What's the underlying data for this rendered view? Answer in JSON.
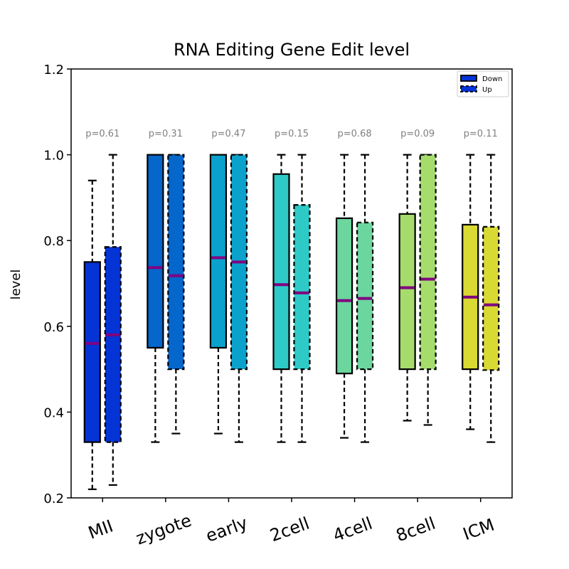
{
  "chart_data": {
    "type": "box",
    "title": "RNA Editing Gene Edit level",
    "xlabel": "",
    "ylabel": "level",
    "ylim": [
      0.2,
      1.2
    ],
    "yticks": [
      0.2,
      0.4,
      0.6,
      0.8,
      1.0,
      1.2
    ],
    "ytick_labels": [
      "0.2",
      "0.4",
      "0.6",
      "0.8",
      "1.0",
      "1.2"
    ],
    "grid": false,
    "legend_position": "top-right",
    "median_color": "#800080",
    "categories": [
      "MII",
      "zygote",
      "early",
      "2cell",
      "4cell",
      "8cell",
      "ICM"
    ],
    "category_colors": [
      "#0433d6",
      "#0566cc",
      "#0aa2cc",
      "#2ecac8",
      "#6bd69e",
      "#a6dc6c",
      "#d9d933"
    ],
    "p_values": [
      "p=0.61",
      "p=0.31",
      "p=0.47",
      "p=0.15",
      "p=0.68",
      "p=0.09",
      "p=0.11"
    ],
    "series": [
      {
        "name": "Down",
        "linestyle": "solid",
        "boxes": [
          {
            "whisker_low": 0.22,
            "q1": 0.33,
            "median": 0.56,
            "q3": 0.75,
            "whisker_high": 0.94
          },
          {
            "whisker_low": 0.33,
            "q1": 0.55,
            "median": 0.737,
            "q3": 1.0,
            "whisker_high": 1.0
          },
          {
            "whisker_low": 0.35,
            "q1": 0.55,
            "median": 0.76,
            "q3": 1.0,
            "whisker_high": 1.0
          },
          {
            "whisker_low": 0.33,
            "q1": 0.5,
            "median": 0.697,
            "q3": 0.955,
            "whisker_high": 1.0
          },
          {
            "whisker_low": 0.34,
            "q1": 0.49,
            "median": 0.66,
            "q3": 0.852,
            "whisker_high": 1.0
          },
          {
            "whisker_low": 0.38,
            "q1": 0.5,
            "median": 0.69,
            "q3": 0.862,
            "whisker_high": 1.0
          },
          {
            "whisker_low": 0.36,
            "q1": 0.5,
            "median": 0.668,
            "q3": 0.837,
            "whisker_high": 1.0
          }
        ]
      },
      {
        "name": "Up",
        "linestyle": "dashed",
        "boxes": [
          {
            "whisker_low": 0.23,
            "q1": 0.33,
            "median": 0.58,
            "q3": 0.785,
            "whisker_high": 1.0
          },
          {
            "whisker_low": 0.35,
            "q1": 0.5,
            "median": 0.718,
            "q3": 1.0,
            "whisker_high": 1.0
          },
          {
            "whisker_low": 0.33,
            "q1": 0.5,
            "median": 0.75,
            "q3": 1.0,
            "whisker_high": 1.0
          },
          {
            "whisker_low": 0.33,
            "q1": 0.5,
            "median": 0.678,
            "q3": 0.883,
            "whisker_high": 1.0
          },
          {
            "whisker_low": 0.33,
            "q1": 0.5,
            "median": 0.665,
            "q3": 0.842,
            "whisker_high": 1.0
          },
          {
            "whisker_low": 0.37,
            "q1": 0.5,
            "median": 0.71,
            "q3": 1.0,
            "whisker_high": 1.0
          },
          {
            "whisker_low": 0.33,
            "q1": 0.498,
            "median": 0.65,
            "q3": 0.832,
            "whisker_high": 1.0
          }
        ]
      }
    ]
  }
}
